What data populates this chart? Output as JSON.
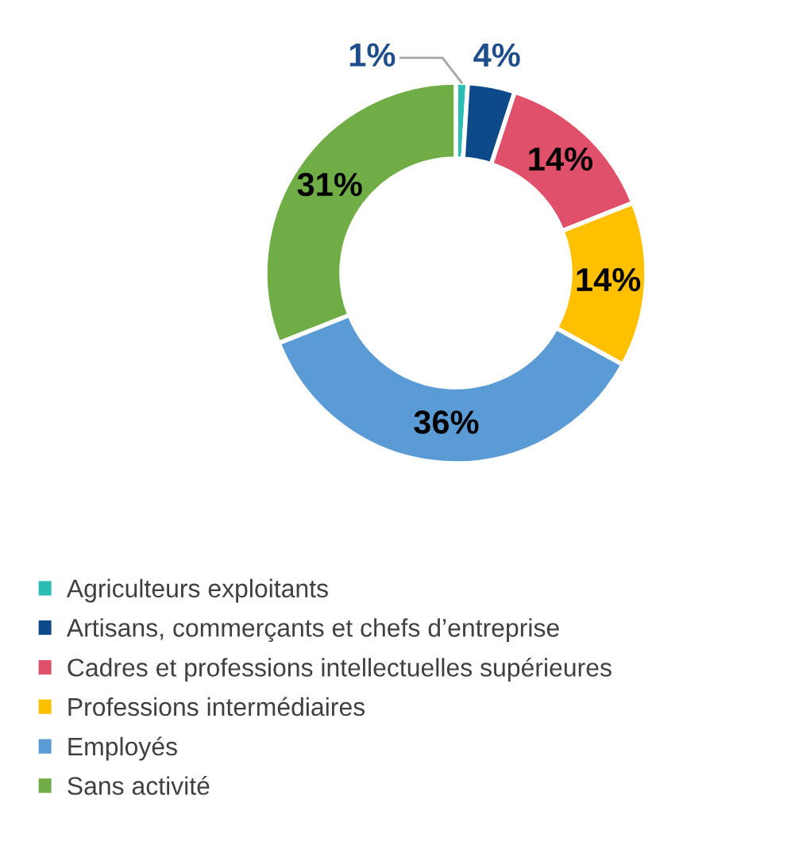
{
  "chart_data": {
    "type": "donut",
    "categories": [
      "Agriculteurs exploitants",
      "Artisans, commerçants et chefs d’entreprise",
      "Cadres et professions intellectuelles supérieures",
      "Professions intermédiaires",
      "Employés",
      "Sans activité"
    ],
    "values": [
      1,
      4,
      14,
      14,
      36,
      31
    ],
    "colors": [
      "#2bbcb3",
      "#0e4a8a",
      "#e0506a",
      "#ffc000",
      "#5b9bd5",
      "#70ad47"
    ],
    "value_labels": [
      "1%",
      "4%",
      "14%",
      "14%",
      "36%",
      "31%"
    ],
    "legend": "bottom"
  }
}
